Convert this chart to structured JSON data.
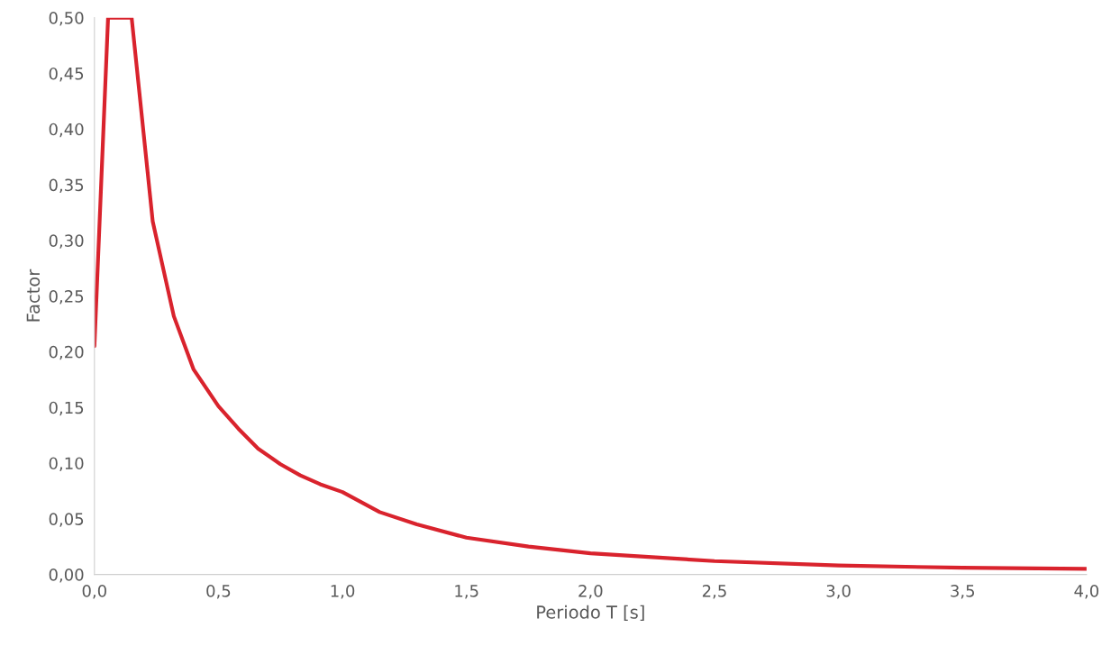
{
  "chart_data": {
    "type": "line",
    "xlabel": "Periodo T [s]",
    "ylabel": "Factor",
    "x": [
      0,
      0.055,
      0.15,
      0.235,
      0.32,
      0.4,
      0.5,
      0.58,
      0.66,
      0.75,
      0.83,
      0.91,
      1.0,
      1.15,
      1.3,
      1.5,
      1.75,
      2.0,
      2.5,
      3.0,
      3.5,
      4.0
    ],
    "series": [
      {
        "color": "#d9232d",
        "values": [
          0.205,
          0.5,
          0.5,
          0.317,
          0.232,
          0.184,
          0.151,
          0.131,
          0.113,
          0.099,
          0.089,
          0.081,
          0.074,
          0.056,
          0.045,
          0.033,
          0.025,
          0.019,
          0.012,
          0.008,
          0.006,
          0.005
        ]
      }
    ],
    "xlim": [
      0,
      4.0
    ],
    "ylim": [
      0,
      0.5
    ],
    "xticks": [
      {
        "value": 0,
        "label": "0,0"
      },
      {
        "value": 0.5,
        "label": "0,5"
      },
      {
        "value": 1.0,
        "label": "1,0"
      },
      {
        "value": 1.5,
        "label": "1,5"
      },
      {
        "value": 2.0,
        "label": "2,0"
      },
      {
        "value": 2.5,
        "label": "2,5"
      },
      {
        "value": 3.0,
        "label": "3,0"
      },
      {
        "value": 3.5,
        "label": "3,5"
      },
      {
        "value": 4.0,
        "label": "4,0"
      }
    ],
    "yticks": [
      {
        "value": 0,
        "label": "0,00"
      },
      {
        "value": 0.05,
        "label": "0,05"
      },
      {
        "value": 0.1,
        "label": "0,10"
      },
      {
        "value": 0.15,
        "label": "0,15"
      },
      {
        "value": 0.2,
        "label": "0,20"
      },
      {
        "value": 0.25,
        "label": "0,25"
      },
      {
        "value": 0.3,
        "label": "0,30"
      },
      {
        "value": 0.35,
        "label": "0,35"
      },
      {
        "value": 0.4,
        "label": "0,40"
      },
      {
        "value": 0.45,
        "label": "0,45"
      },
      {
        "value": 0.5,
        "label": "0,50"
      }
    ],
    "grid": false,
    "legend": false,
    "marker": "none",
    "line_style": "solid"
  }
}
